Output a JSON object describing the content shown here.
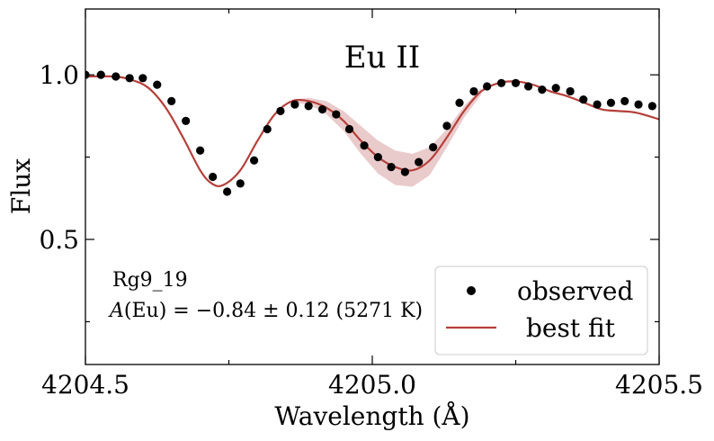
{
  "chart_data": {
    "type": "line",
    "title": "Eu II",
    "xlabel": "Wavelength (Å)",
    "ylabel": "Flux",
    "xlim": [
      4204.5,
      4205.5
    ],
    "ylim": [
      0.12,
      1.2
    ],
    "x_ticks": [
      4204.5,
      4205.0,
      4205.5
    ],
    "x_tick_labels": [
      "4204.5",
      "4205.0",
      "4205.5"
    ],
    "x_minor_ticks": [
      4204.75,
      4205.25
    ],
    "y_ticks": [
      0.5,
      1.0
    ],
    "y_tick_labels": [
      "0.5",
      "1.0"
    ],
    "y_minor_ticks": [
      0.25,
      0.75
    ],
    "star_label": "Rg9_19",
    "abundance_label": "(Eu) = −0.84 ± 0.12 (5271 K)",
    "abundance_symbol": "A",
    "legend_position": "lower-right",
    "colors": {
      "observed": "#000000",
      "best_fit": "#b5403a",
      "band": "#d9a0a3"
    },
    "series": [
      {
        "name": "observed",
        "label": "observed",
        "kind": "scatter",
        "x": [
          4204.5,
          4204.527,
          4204.553,
          4204.577,
          4204.6,
          4204.625,
          4204.65,
          4204.675,
          4204.7,
          4204.722,
          4204.747,
          4204.77,
          4204.794,
          4204.817,
          4204.84,
          4204.865,
          4204.889,
          4204.913,
          4204.937,
          4204.96,
          4204.986,
          4205.01,
          4205.033,
          4205.057,
          4205.081,
          4205.106,
          4205.13,
          4205.152,
          4205.177,
          4205.2,
          4205.225,
          4205.25,
          4205.272,
          4205.296,
          4205.32,
          4205.345,
          4205.368,
          4205.392,
          4205.416,
          4205.44,
          4205.464,
          4205.488
        ],
        "y": [
          1.0,
          1.0,
          0.995,
          0.99,
          0.99,
          0.97,
          0.92,
          0.86,
          0.77,
          0.69,
          0.645,
          0.67,
          0.74,
          0.835,
          0.89,
          0.91,
          0.905,
          0.895,
          0.88,
          0.835,
          0.785,
          0.75,
          0.72,
          0.705,
          0.735,
          0.78,
          0.845,
          0.915,
          0.95,
          0.965,
          0.975,
          0.975,
          0.965,
          0.955,
          0.96,
          0.95,
          0.925,
          0.91,
          0.915,
          0.92,
          0.91,
          0.905
        ]
      },
      {
        "name": "best fit",
        "label": "best fit",
        "kind": "line",
        "x": [
          4204.5,
          4204.55,
          4204.58,
          4204.61,
          4204.64,
          4204.67,
          4204.7,
          4204.72,
          4204.74,
          4204.77,
          4204.8,
          4204.83,
          4204.86,
          4204.89,
          4204.92,
          4204.95,
          4204.98,
          4205.01,
          4205.04,
          4205.07,
          4205.1,
          4205.13,
          4205.16,
          4205.19,
          4205.22,
          4205.25,
          4205.28,
          4205.31,
          4205.34,
          4205.37,
          4205.4,
          4205.43,
          4205.46,
          4205.5
        ],
        "y": [
          0.995,
          0.995,
          0.985,
          0.96,
          0.9,
          0.81,
          0.71,
          0.67,
          0.665,
          0.71,
          0.8,
          0.88,
          0.92,
          0.92,
          0.9,
          0.86,
          0.8,
          0.75,
          0.72,
          0.71,
          0.74,
          0.81,
          0.89,
          0.95,
          0.975,
          0.98,
          0.97,
          0.95,
          0.935,
          0.915,
          0.895,
          0.89,
          0.885,
          0.865
        ]
      },
      {
        "name": "uncertainty band",
        "kind": "band",
        "x": [
          4204.86,
          4204.89,
          4204.92,
          4204.95,
          4204.98,
          4205.01,
          4205.04,
          4205.07,
          4205.1,
          4205.13,
          4205.16,
          4205.19
        ],
        "upper": [
          0.925,
          0.93,
          0.92,
          0.89,
          0.845,
          0.8,
          0.77,
          0.76,
          0.78,
          0.835,
          0.905,
          0.96
        ],
        "lower": [
          0.915,
          0.91,
          0.88,
          0.83,
          0.76,
          0.7,
          0.665,
          0.66,
          0.695,
          0.78,
          0.87,
          0.94
        ]
      }
    ]
  }
}
